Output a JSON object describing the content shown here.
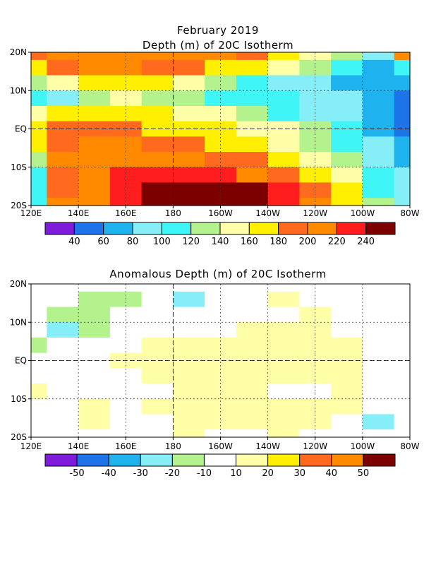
{
  "chart_data": [
    {
      "type": "heatmap",
      "title": "February 2019",
      "subtitle": "Depth (m) of 20C Isotherm",
      "x_ticks": [
        "120E",
        "140E",
        "160E",
        "180",
        "160W",
        "140W",
        "120W",
        "100W",
        "80W"
      ],
      "y_ticks": [
        "20N",
        "10N",
        "EQ",
        "10S",
        "20S"
      ],
      "xlim": [
        120,
        280
      ],
      "ylim": [
        -20,
        20
      ],
      "colorbar": {
        "colors": [
          "#7d1bd8",
          "#1d74e8",
          "#1eb2ee",
          "#86eef6",
          "#3ff5f5",
          "#b3f28c",
          "#ffffa8",
          "#ffef00",
          "#ff6a1e",
          "#ff8a00",
          "#ff1d1d",
          "#7d0000"
        ],
        "labels": [
          "40",
          "60",
          "80",
          "100",
          "120",
          "140",
          "160",
          "180",
          "200",
          "220",
          "240"
        ]
      },
      "grid": "dashed",
      "field": [
        {
          "lat": 20,
          "values": [
            180,
            200,
            210,
            215,
            215,
            210,
            205,
            190,
            175,
            150,
            120,
            80,
            200
          ]
        },
        {
          "lat": 16,
          "values": [
            160,
            190,
            200,
            200,
            195,
            185,
            175,
            160,
            140,
            120,
            100,
            70,
            100
          ]
        },
        {
          "lat": 12,
          "values": [
            130,
            150,
            170,
            170,
            160,
            145,
            130,
            110,
            90,
            80,
            70,
            60,
            70
          ]
        },
        {
          "lat": 8,
          "values": [
            100,
            80,
            120,
            140,
            130,
            120,
            115,
            110,
            100,
            90,
            80,
            65,
            55
          ]
        },
        {
          "lat": 4,
          "values": [
            150,
            160,
            165,
            165,
            160,
            150,
            140,
            125,
            110,
            95,
            80,
            60,
            40
          ]
        },
        {
          "lat": 0,
          "values": [
            170,
            180,
            180,
            180,
            175,
            170,
            165,
            155,
            140,
            120,
            100,
            70,
            40
          ]
        },
        {
          "lat": -4,
          "values": [
            170,
            190,
            200,
            200,
            195,
            185,
            175,
            165,
            150,
            130,
            110,
            80,
            60
          ]
        },
        {
          "lat": -8,
          "values": [
            130,
            200,
            215,
            215,
            210,
            205,
            195,
            185,
            170,
            150,
            120,
            90,
            70
          ]
        },
        {
          "lat": -12,
          "values": [
            110,
            190,
            210,
            220,
            230,
            230,
            220,
            210,
            195,
            170,
            140,
            100,
            80
          ]
        },
        {
          "lat": -16,
          "values": [
            110,
            190,
            200,
            220,
            245,
            250,
            250,
            240,
            220,
            190,
            160,
            110,
            80
          ]
        },
        {
          "lat": -20,
          "values": [
            110,
            200,
            205,
            220,
            245,
            250,
            250,
            250,
            225,
            200,
            165,
            120,
            80
          ]
        }
      ]
    },
    {
      "type": "heatmap",
      "title": "Anomalous Depth (m) of 20C Isotherm",
      "x_ticks": [
        "120E",
        "140E",
        "160E",
        "180",
        "160W",
        "140W",
        "120W",
        "100W",
        "80W"
      ],
      "y_ticks": [
        "20N",
        "10N",
        "EQ",
        "10S",
        "20S"
      ],
      "xlim": [
        120,
        280
      ],
      "ylim": [
        -20,
        20
      ],
      "colorbar": {
        "colors": [
          "#7d1bd8",
          "#1d74e8",
          "#1eb2ee",
          "#86eef6",
          "#b3f28c",
          "#ffffff",
          "#ffffa8",
          "#ffef00",
          "#ff6a1e",
          "#ff8a00",
          "#7d0000"
        ],
        "labels": [
          "-50",
          "-40",
          "-30",
          "-20",
          "-10",
          "10",
          "20",
          "30",
          "40",
          "50"
        ]
      },
      "grid": "dashed",
      "field": [
        {
          "lat": 20,
          "values": [
            0,
            0,
            5,
            0,
            -5,
            0,
            0,
            0,
            5,
            5,
            5,
            0,
            0
          ]
        },
        {
          "lat": 16,
          "values": [
            0,
            -10,
            -15,
            -15,
            -10,
            -25,
            0,
            5,
            10,
            5,
            0,
            0,
            0
          ]
        },
        {
          "lat": 12,
          "values": [
            0,
            -15,
            -12,
            -10,
            -5,
            -5,
            0,
            0,
            5,
            10,
            5,
            0,
            0
          ]
        },
        {
          "lat": 8,
          "values": [
            -5,
            -25,
            -12,
            0,
            0,
            0,
            0,
            12,
            15,
            10,
            5,
            0,
            5
          ]
        },
        {
          "lat": 4,
          "values": [
            -15,
            0,
            0,
            5,
            12,
            12,
            15,
            12,
            12,
            10,
            12,
            5,
            5
          ]
        },
        {
          "lat": 0,
          "values": [
            0,
            0,
            0,
            12,
            12,
            15,
            15,
            15,
            12,
            12,
            15,
            0,
            5
          ]
        },
        {
          "lat": -4,
          "values": [
            5,
            0,
            0,
            0,
            15,
            15,
            12,
            12,
            10,
            12,
            15,
            5,
            0
          ]
        },
        {
          "lat": -8,
          "values": [
            15,
            5,
            5,
            5,
            5,
            12,
            15,
            12,
            0,
            -10,
            12,
            5,
            5
          ]
        },
        {
          "lat": -12,
          "values": [
            5,
            0,
            12,
            0,
            12,
            15,
            12,
            15,
            10,
            12,
            10,
            -10,
            0
          ]
        },
        {
          "lat": -16,
          "values": [
            5,
            5,
            12,
            5,
            5,
            15,
            10,
            12,
            15,
            10,
            0,
            -30,
            -10
          ]
        },
        {
          "lat": -20,
          "values": [
            0,
            0,
            5,
            5,
            0,
            10,
            5,
            5,
            12,
            5,
            0,
            -10,
            0
          ]
        }
      ]
    }
  ]
}
